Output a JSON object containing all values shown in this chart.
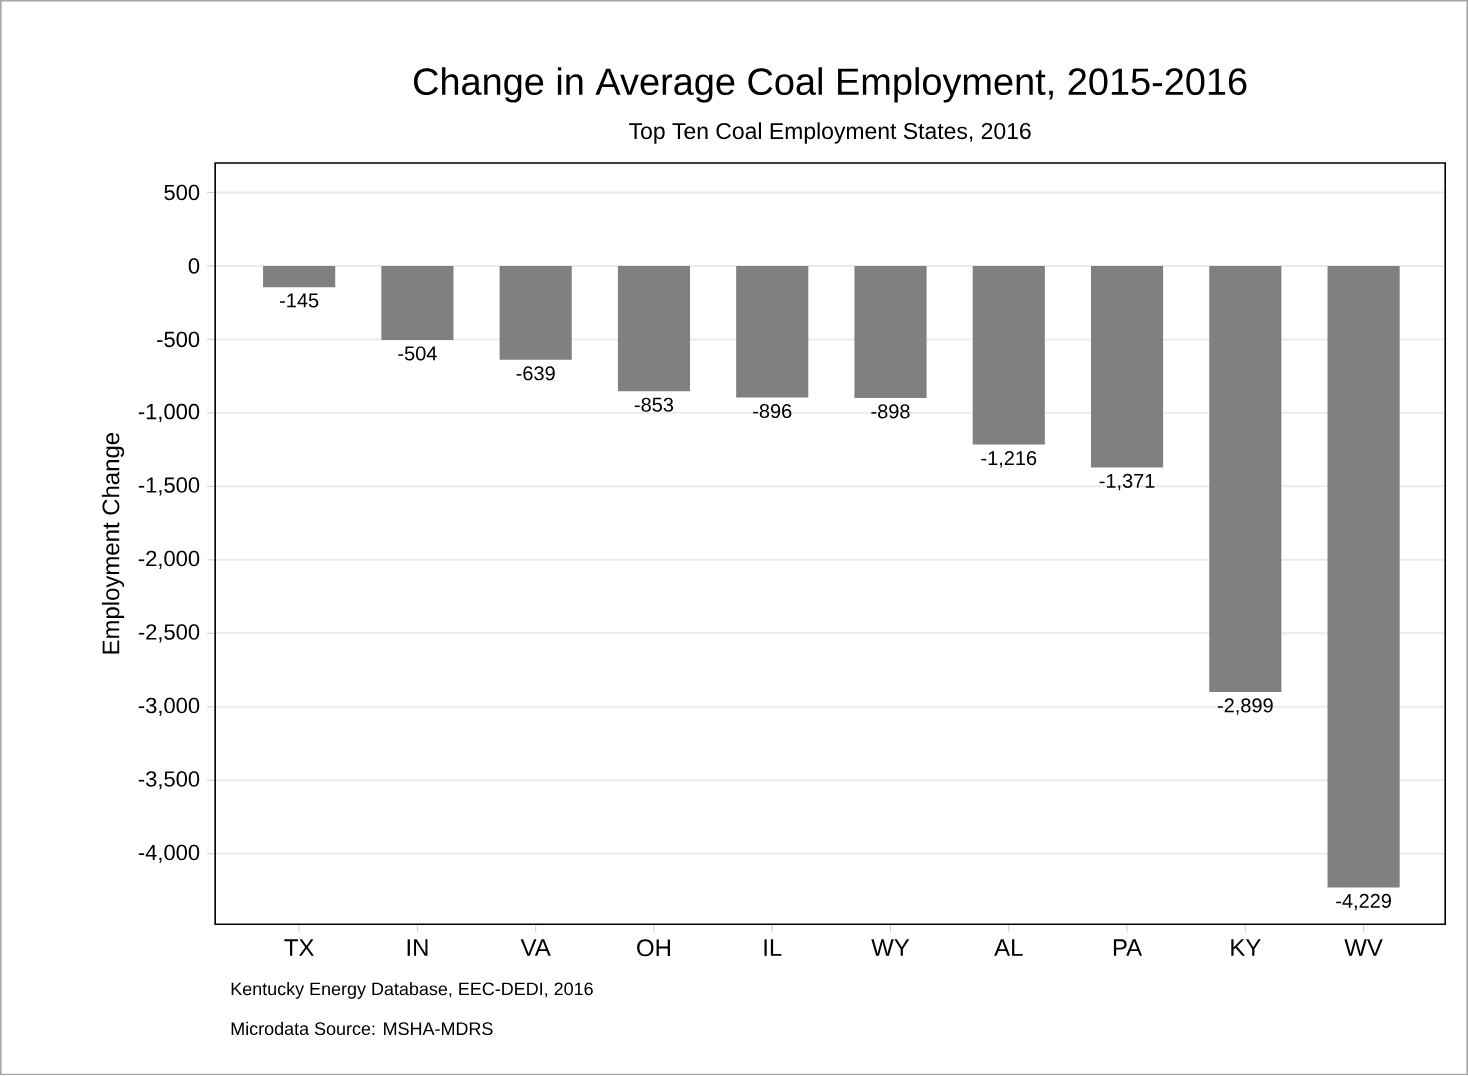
{
  "chart_data": {
    "type": "bar",
    "title": "Change in Average Coal Employment, 2015-2016",
    "subtitle": "Top Ten Coal Employment States, 2016",
    "ylabel": "Employment Change",
    "categories": [
      "TX",
      "IN",
      "VA",
      "OH",
      "IL",
      "WY",
      "AL",
      "PA",
      "KY",
      "WV"
    ],
    "values": [
      -145,
      -504,
      -639,
      -853,
      -896,
      -898,
      -1216,
      -1371,
      -2899,
      -4229
    ],
    "value_labels": [
      "-145",
      "-504",
      "-639",
      "-853",
      "-896",
      "-898",
      "-1,216",
      "-1,371",
      "-2,899",
      "-4,229"
    ],
    "color": "#808080",
    "ylim": [
      -4480,
      700
    ],
    "yticks": [
      500,
      0,
      {
        "value": -500,
        "label": "-500"
      },
      {
        "value": -1000,
        "label": "-1,000"
      },
      {
        "value": -1500,
        "label": "-1,500"
      },
      {
        "value": -2000,
        "label": "-2,000"
      },
      {
        "value": -2500,
        "label": "-2,500"
      },
      {
        "value": -3000,
        "label": "-3,000"
      },
      {
        "value": -3500,
        "label": "-3,500"
      },
      {
        "value": -4000,
        "label": "-4,000"
      }
    ],
    "grid": "y",
    "annotations": [
      "Kentucky Energy Database, EEC-DEDI, 2016",
      "Microdata Source: MSHA-MDRS"
    ]
  }
}
